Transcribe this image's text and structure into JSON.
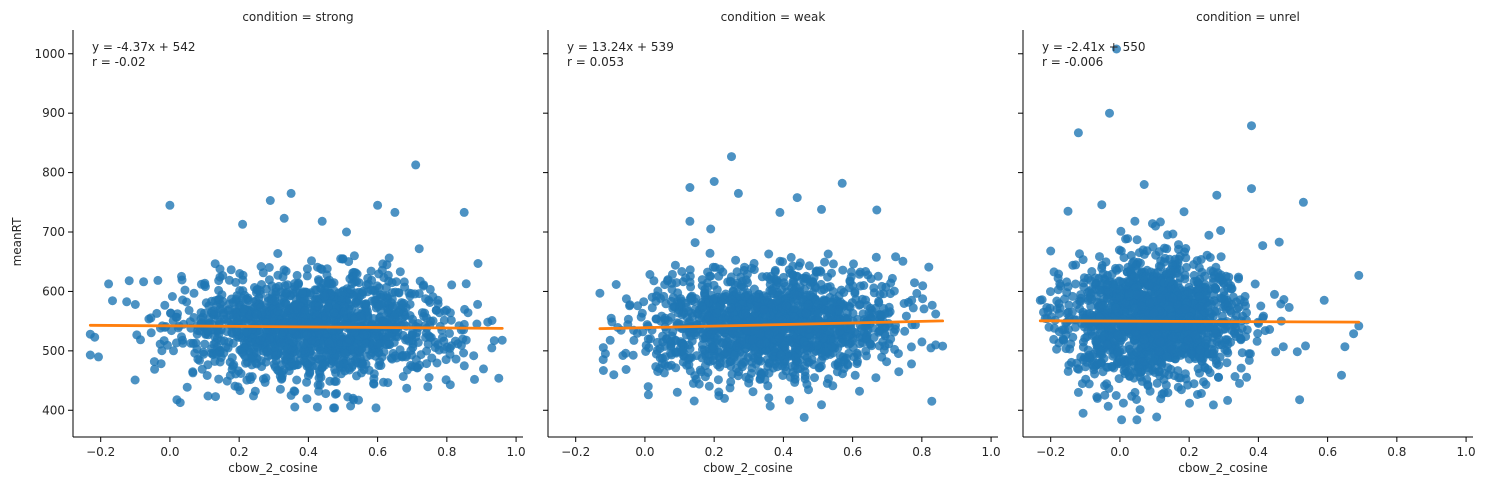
{
  "chart_data": {
    "type": "scatter",
    "shared_ylabel": "meanRT",
    "ylim": [
      355,
      1040
    ],
    "yticks": [
      400,
      500,
      600,
      700,
      800,
      900,
      1000
    ],
    "xlim": [
      -0.28,
      1.02
    ],
    "xticks": [
      -0.2,
      0.0,
      0.2,
      0.4,
      0.6,
      0.8,
      1.0
    ],
    "xtick_labels": [
      "−0.2",
      "0.0",
      "0.2",
      "0.4",
      "0.6",
      "0.8",
      "1.0"
    ],
    "xlabel": "cbow_2_cosine",
    "colors": {
      "points": "#1f77b4",
      "fit": "#ff7f0e"
    },
    "panels": [
      {
        "title": "condition = strong",
        "equation": "y = -4.37x + 542",
        "r": "r = -0.02",
        "fit": {
          "slope": -4.37,
          "intercept": 542,
          "x_range": [
            -0.23,
            0.96
          ]
        },
        "cloud": {
          "x_min": -0.23,
          "x_max": 0.96,
          "x_mean": 0.42,
          "x_sd": 0.2,
          "y_mean": 539,
          "y_sd": 45,
          "n": 1500
        },
        "outliers": [
          {
            "x": 0.71,
            "y": 813
          },
          {
            "x": 0.0,
            "y": 745
          },
          {
            "x": 0.35,
            "y": 765
          },
          {
            "x": 0.29,
            "y": 753
          },
          {
            "x": 0.6,
            "y": 745
          },
          {
            "x": 0.85,
            "y": 733
          },
          {
            "x": 0.65,
            "y": 733
          },
          {
            "x": 0.33,
            "y": 723
          },
          {
            "x": 0.44,
            "y": 718
          },
          {
            "x": 0.21,
            "y": 713
          },
          {
            "x": 0.51,
            "y": 700
          },
          {
            "x": 0.72,
            "y": 672
          },
          {
            "x": 0.89,
            "y": 647
          },
          {
            "x": -0.23,
            "y": 528
          },
          {
            "x": -0.23,
            "y": 493
          },
          {
            "x": 0.11,
            "y": 424
          },
          {
            "x": 0.35,
            "y": 425
          },
          {
            "x": 0.45,
            "y": 428
          },
          {
            "x": 0.81,
            "y": 443
          },
          {
            "x": 0.95,
            "y": 454
          },
          {
            "x": 0.88,
            "y": 452
          },
          {
            "x": 0.93,
            "y": 505
          },
          {
            "x": 0.96,
            "y": 518
          },
          {
            "x": -0.1,
            "y": 578
          }
        ]
      },
      {
        "title": "condition = weak",
        "equation": "y = 13.24x + 539",
        "r": "r = 0.053",
        "fit": {
          "slope": 13.24,
          "intercept": 539,
          "x_range": [
            -0.13,
            0.86
          ]
        },
        "cloud": {
          "x_min": -0.13,
          "x_max": 0.86,
          "x_mean": 0.36,
          "x_sd": 0.18,
          "y_mean": 542,
          "y_sd": 45,
          "n": 1500
        },
        "outliers": [
          {
            "x": 0.25,
            "y": 827
          },
          {
            "x": 0.2,
            "y": 785
          },
          {
            "x": 0.57,
            "y": 782
          },
          {
            "x": 0.13,
            "y": 775
          },
          {
            "x": 0.27,
            "y": 765
          },
          {
            "x": 0.44,
            "y": 758
          },
          {
            "x": 0.51,
            "y": 738
          },
          {
            "x": 0.67,
            "y": 737
          },
          {
            "x": 0.39,
            "y": 733
          },
          {
            "x": 0.13,
            "y": 718
          },
          {
            "x": 0.19,
            "y": 705
          },
          {
            "x": 0.82,
            "y": 641
          },
          {
            "x": -0.13,
            "y": 597
          },
          {
            "x": -0.12,
            "y": 467
          },
          {
            "x": 0.01,
            "y": 426
          },
          {
            "x": 0.23,
            "y": 420
          },
          {
            "x": 0.46,
            "y": 388
          },
          {
            "x": 0.62,
            "y": 432
          },
          {
            "x": 0.84,
            "y": 510
          },
          {
            "x": 0.86,
            "y": 508
          },
          {
            "x": 0.84,
            "y": 562
          },
          {
            "x": 0.77,
            "y": 478
          }
        ]
      },
      {
        "title": "condition = unrel",
        "equation": "y = -2.41x + 550",
        "r": "r = -0.006",
        "fit": {
          "slope": -2.41,
          "intercept": 550,
          "x_range": [
            -0.23,
            0.69
          ]
        },
        "cloud": {
          "x_min": -0.23,
          "x_max": 0.69,
          "x_mean": 0.1,
          "x_sd": 0.13,
          "y_mean": 549,
          "y_sd": 55,
          "n": 1600
        },
        "outliers": [
          {
            "x": -0.01,
            "y": 1008
          },
          {
            "x": -0.03,
            "y": 900
          },
          {
            "x": 0.38,
            "y": 879
          },
          {
            "x": -0.12,
            "y": 867
          },
          {
            "x": 0.38,
            "y": 773
          },
          {
            "x": 0.07,
            "y": 780
          },
          {
            "x": 0.53,
            "y": 750
          },
          {
            "x": 0.28,
            "y": 762
          },
          {
            "x": -0.15,
            "y": 735
          },
          {
            "x": 0.69,
            "y": 627
          },
          {
            "x": 0.59,
            "y": 585
          },
          {
            "x": 0.69,
            "y": 542
          },
          {
            "x": 0.65,
            "y": 507
          },
          {
            "x": 0.64,
            "y": 459
          },
          {
            "x": 0.27,
            "y": 409
          },
          {
            "x": 0.01,
            "y": 412
          },
          {
            "x": -0.12,
            "y": 430
          },
          {
            "x": -0.2,
            "y": 668
          },
          {
            "x": -0.23,
            "y": 585
          },
          {
            "x": 0.46,
            "y": 683
          }
        ]
      }
    ]
  }
}
